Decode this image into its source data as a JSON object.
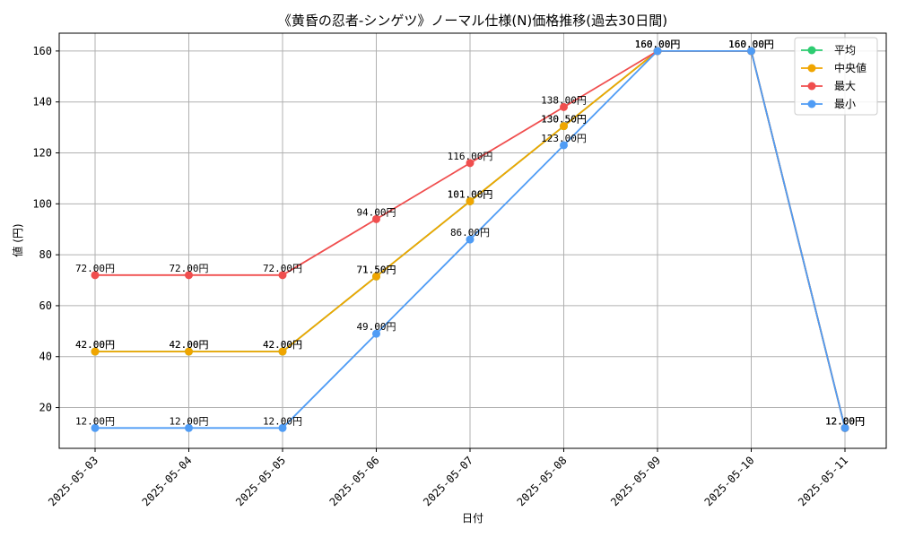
{
  "chart_data": {
    "type": "line",
    "title": "《黄昏の忍者-シンゲツ》ノーマル仕様(N)価格推移(過去30日間)",
    "xlabel": "日付",
    "ylabel": "値 (円)",
    "categories": [
      "2025-05-03",
      "2025-05-04",
      "2025-05-05",
      "2025-05-06",
      "2025-05-07",
      "2025-05-08",
      "2025-05-09",
      "2025-05-10",
      "2025-05-11"
    ],
    "ylim": [
      4,
      167
    ],
    "yticks": [
      20,
      40,
      60,
      80,
      100,
      120,
      140,
      160
    ],
    "grid": true,
    "legend_position": "top-right",
    "series": [
      {
        "name": "平均",
        "color": "#2ecc71",
        "values": [
          42,
          42,
          42,
          71.5,
          101,
          130.5,
          160,
          160,
          12
        ],
        "labels": [
          "42.00円",
          "42.00円",
          "42.00円",
          "71.50円",
          "101.00円",
          "130.50円",
          "160.00円",
          "160.00円",
          "12.00円"
        ]
      },
      {
        "name": "中央値",
        "color": "#f0a500",
        "values": [
          42,
          42,
          42,
          71.5,
          101,
          130.5,
          160,
          160,
          12
        ],
        "labels": [
          "42.00円",
          "42.00円",
          "42.00円",
          "71.50円",
          "101.00円",
          "130.50円",
          "160.00円",
          "160.00円",
          "12.00円"
        ]
      },
      {
        "name": "最大",
        "color": "#f04e4e",
        "values": [
          72,
          72,
          72,
          94,
          116,
          138,
          160,
          160,
          12
        ],
        "labels": [
          "72.00円",
          "72.00円",
          "72.00円",
          "94.00円",
          "116.00円",
          "138.00円",
          "160.00円",
          "160.00円",
          "12.00円"
        ]
      },
      {
        "name": "最小",
        "color": "#4f9cf5",
        "values": [
          12,
          12,
          12,
          49,
          86,
          123,
          160,
          160,
          12
        ],
        "labels": [
          "12.00円",
          "12.00円",
          "12.00円",
          "49.00円",
          "86.00円",
          "123.00円",
          "160.00円",
          "160.00円",
          "12.00円"
        ]
      }
    ]
  }
}
